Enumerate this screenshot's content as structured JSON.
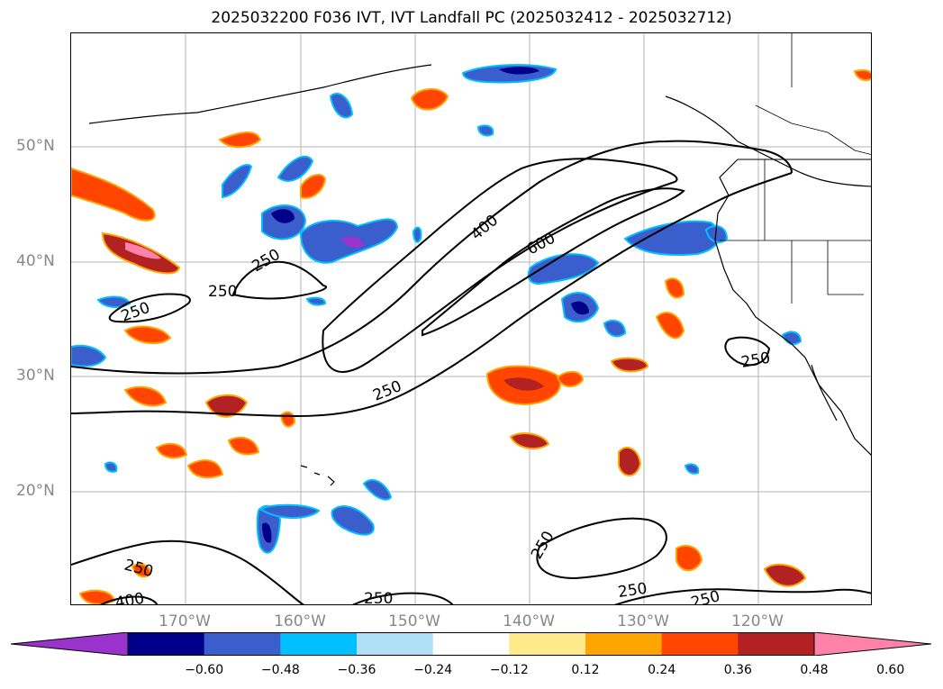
{
  "title": "2025032200 F036 IVT, IVT Landfall PC (2025032412 - 2025032712)",
  "map": {
    "lat_labels": [
      "50°N",
      "40°N",
      "30°N",
      "20°N"
    ],
    "lon_labels": [
      "170°W",
      "160°W",
      "150°W",
      "140°W",
      "130°W",
      "120°W"
    ],
    "contour_levels": [
      250,
      400,
      600
    ],
    "contour_labels": [
      "250",
      "250",
      "250",
      "250",
      "250",
      "250",
      "250",
      "250",
      "250",
      "250",
      "400",
      "400",
      "600"
    ],
    "contour_color": "#000000",
    "grid": true
  },
  "colorbar": {
    "ticks": [
      "−0.60",
      "−0.48",
      "−0.36",
      "−0.24",
      "−0.12",
      "0.12",
      "0.24",
      "0.36",
      "0.48",
      "0.60"
    ],
    "colors": [
      "#9933cc",
      "#00008b",
      "#3a5fcd",
      "#00bfff",
      "#b0e0f8",
      "#ffffff",
      "#ffe98a",
      "#ffa500",
      "#ff4500",
      "#b22222",
      "#ff82ab"
    ],
    "extend": "both"
  }
}
